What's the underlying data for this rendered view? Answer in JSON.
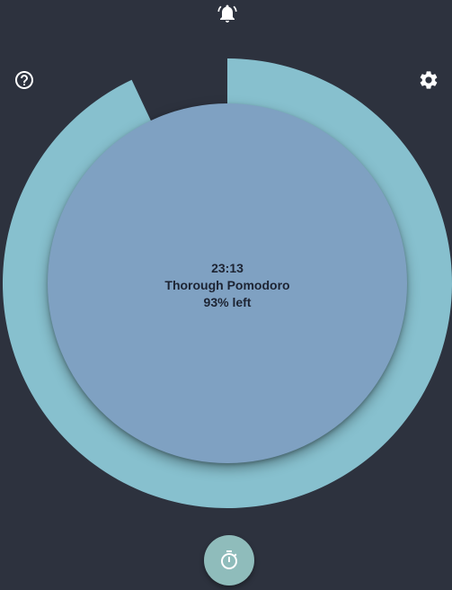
{
  "timer": {
    "time_remaining": "23:13",
    "mode_name": "Thorough Pomodoro",
    "percent_left_label": "93% left",
    "progress_fraction_left": 0.93
  },
  "icons": {
    "top_center": "alarm-bell-icon",
    "top_left": "help-circle-icon",
    "top_right": "settings-gear-icon",
    "fab": "stopwatch-icon"
  },
  "colors": {
    "background": "#2d323e",
    "ring": "#87c0ce",
    "inner_circle": "#7fa1c2",
    "text": "#1d2433",
    "fab": "#8fbcbb",
    "icon": "#ffffff"
  }
}
